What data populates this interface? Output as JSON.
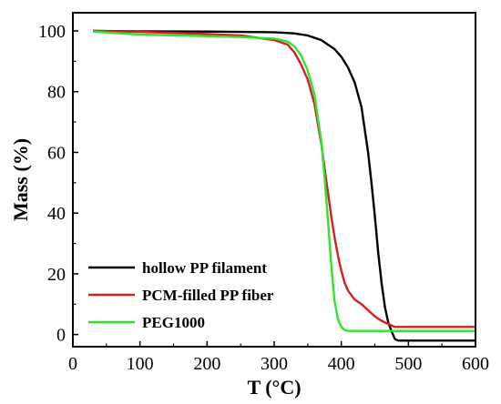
{
  "chart_data": {
    "type": "line",
    "xlabel": "T (°C)",
    "ylabel": "Mass (%)",
    "xlim": [
      0,
      600
    ],
    "ylim": [
      -4,
      106
    ],
    "xticks": [
      0,
      100,
      200,
      300,
      400,
      500,
      600
    ],
    "yticks": [
      0,
      20,
      40,
      60,
      80,
      100
    ],
    "grid": false,
    "legend_position": "bottom-left",
    "series": [
      {
        "name": "hollow PP filament",
        "color": "#000000",
        "x": [
          30,
          100,
          200,
          300,
          330,
          350,
          370,
          390,
          400,
          410,
          420,
          430,
          440,
          445,
          450,
          455,
          460,
          465,
          470,
          475,
          480,
          485,
          490,
          500,
          550,
          600
        ],
        "y": [
          100,
          99.9,
          99.8,
          99.6,
          99.2,
          98.5,
          97,
          94,
          91.5,
          88,
          83,
          75,
          60,
          50,
          39,
          27,
          17,
          9,
          4,
          1,
          -1.5,
          -2,
          -2,
          -2,
          -2,
          -2
        ]
      },
      {
        "name": "PCM-filled PP fiber",
        "color": "#d42020",
        "x": [
          30,
          100,
          200,
          250,
          300,
          320,
          330,
          340,
          350,
          360,
          370,
          380,
          385,
          390,
          395,
          400,
          405,
          410,
          420,
          430,
          440,
          450,
          460,
          470,
          480,
          500,
          550,
          600
        ],
        "y": [
          100,
          99.7,
          99,
          98.5,
          97,
          95.5,
          93,
          89,
          84,
          76,
          63,
          47,
          39,
          32,
          26,
          21,
          17,
          14.5,
          11.5,
          10,
          8,
          6,
          4.5,
          3.5,
          2.5,
          2.5,
          2.5,
          2.5
        ]
      },
      {
        "name": "PEG1000",
        "color": "#2fe32f",
        "x": [
          30,
          100,
          200,
          250,
          300,
          320,
          330,
          340,
          350,
          360,
          370,
          375,
          380,
          385,
          390,
          395,
          400,
          405,
          410,
          420,
          500,
          600
        ],
        "y": [
          99.8,
          98.8,
          98.3,
          98,
          97.5,
          96.5,
          95,
          92,
          87,
          79,
          64,
          52,
          38,
          23,
          11,
          5,
          2.5,
          1.5,
          1.2,
          1.2,
          1.2,
          1.2
        ]
      }
    ]
  }
}
